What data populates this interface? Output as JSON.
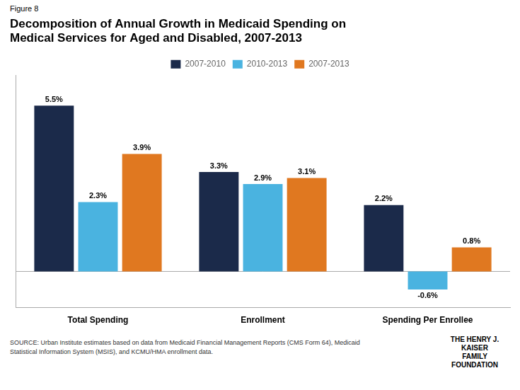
{
  "chart_data": {
    "type": "bar",
    "title": "Decomposition of Annual Growth in Medicaid Spending on\nMedical Services for Aged and Disabled, 2007-2013",
    "categories": [
      "Total Spending",
      "Enrollment",
      "Spending Per Enrollee"
    ],
    "series": [
      {
        "name": "2007-2010",
        "color": "#1b2a4a",
        "values": [
          5.5,
          3.3,
          2.2
        ],
        "value_labels": [
          "5.5%",
          "3.3%",
          "2.2%"
        ]
      },
      {
        "name": "2010-2013",
        "color": "#4ab3e0",
        "values": [
          2.3,
          2.9,
          -0.6
        ],
        "value_labels": [
          "2.3%",
          "2.9%",
          "-0.6%"
        ]
      },
      {
        "name": "2007-2013",
        "color": "#e07820",
        "values": [
          3.9,
          3.1,
          0.8
        ],
        "value_labels": [
          "3.9%",
          "3.1%",
          "0.8%"
        ]
      }
    ],
    "ylim": [
      -1.2,
      6.5
    ],
    "grid": false,
    "legend": "top",
    "data_labels": true,
    "tick_labels": "x",
    "annotations": [
      "Figure 8",
      "SOURCE: Urban Institute estimates based on data from Medicaid Financial Management Reports (CMS Form 64), Medicaid\nStatistical Information System (MSIS), and KCMU/HMA enrollment data.",
      "THE HENRY J.\nKAISER\nFAMILY\nFOUNDATION"
    ]
  }
}
